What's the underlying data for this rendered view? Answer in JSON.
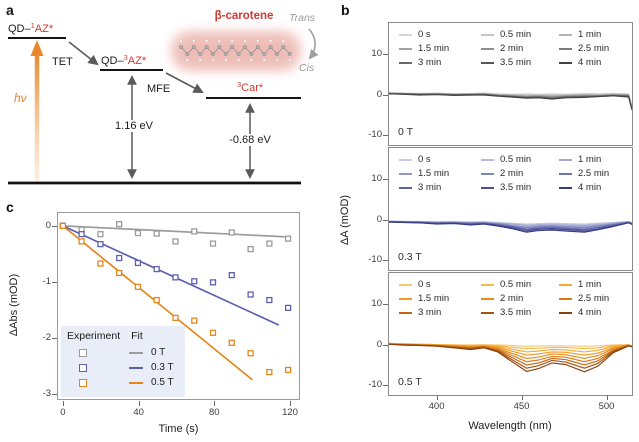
{
  "panels": {
    "a": "a",
    "b": "b",
    "c": "c"
  },
  "panel_a": {
    "state_singlet": {
      "prefix": "QD–",
      "sup": "1",
      "rest": "AZ*"
    },
    "state_triplet": {
      "prefix": "QD–",
      "sup": "3",
      "rest": "AZ*"
    },
    "state_car": {
      "sup": "3",
      "rest": "Car*"
    },
    "labels": {
      "tet": "TET",
      "mfe": "MFE",
      "hv": "hν",
      "e_triplet": "1.16 eV",
      "e_car": "-0.68 eV",
      "carotene": "β-carotene",
      "trans": "Trans",
      "cis": "Cis"
    },
    "colors": {
      "red": "#cf3a32",
      "orange": "#e8882b",
      "arrow_gray": "#5a5a5a"
    }
  },
  "chart_data": [
    {
      "id": "spectra_0T",
      "type": "line",
      "title": "0 T",
      "xlabel": "Wavelength (nm)",
      "ylabel": "ΔA (mOD)",
      "xlim": [
        372,
        515
      ],
      "ylim": [
        -12.4,
        17.6
      ],
      "xticks": [
        400,
        450,
        500
      ],
      "yticks": [
        10,
        0,
        -10
      ],
      "x": [
        372,
        380,
        390,
        400,
        410,
        420,
        428,
        436,
        444,
        453,
        460,
        468,
        476,
        487,
        495,
        504,
        513,
        515
      ],
      "series": [
        {
          "name": "0 s",
          "color": "#d6d6d6",
          "values": [
            0.5,
            0.4,
            0.3,
            0.4,
            0.2,
            0.3,
            0.4,
            0.2,
            0.1,
            0.2,
            0.1,
            0.2,
            0.1,
            0.3,
            0.2,
            0.3,
            0.2,
            -3.0
          ]
        },
        {
          "name": "0.5 min",
          "color": "#c6c6c6",
          "values": [
            0.4,
            0.3,
            0.3,
            0.3,
            0.2,
            0.2,
            0.3,
            0.1,
            0.0,
            -0.1,
            0.0,
            -0.1,
            0.0,
            0.1,
            0.1,
            0.2,
            0.1,
            -3.1
          ]
        },
        {
          "name": "1 min",
          "color": "#b4b4b4",
          "values": [
            0.4,
            0.3,
            0.2,
            0.3,
            0.1,
            0.2,
            0.2,
            0.0,
            -0.1,
            -0.3,
            -0.2,
            -0.3,
            -0.2,
            0.0,
            -0.1,
            0.1,
            0.0,
            -3.2
          ]
        },
        {
          "name": "1.5 min",
          "color": "#a2a2a2",
          "values": [
            0.3,
            0.3,
            0.2,
            0.2,
            0.1,
            0.1,
            0.2,
            -0.1,
            -0.2,
            -0.4,
            -0.3,
            -0.5,
            -0.3,
            -0.2,
            -0.2,
            0.0,
            -0.1,
            -3.3
          ]
        },
        {
          "name": "2 min",
          "color": "#8f8f8f",
          "values": [
            0.3,
            0.2,
            0.1,
            0.2,
            0.0,
            0.1,
            0.1,
            -0.2,
            -0.3,
            -0.5,
            -0.4,
            -0.6,
            -0.4,
            -0.3,
            -0.3,
            -0.1,
            -0.2,
            -3.4
          ]
        },
        {
          "name": "2.5 min",
          "color": "#7c7c7c",
          "values": [
            0.3,
            0.2,
            0.1,
            0.1,
            0.0,
            0.0,
            0.1,
            -0.2,
            -0.4,
            -0.6,
            -0.5,
            -0.8,
            -0.5,
            -0.4,
            -0.3,
            -0.2,
            -0.3,
            -3.5
          ]
        },
        {
          "name": "3 min",
          "color": "#696969",
          "values": [
            0.2,
            0.2,
            0.0,
            0.1,
            -0.1,
            0.0,
            0.0,
            -0.3,
            -0.5,
            -0.7,
            -0.6,
            -0.9,
            -0.6,
            -0.5,
            -0.4,
            -0.2,
            -0.4,
            -3.6
          ]
        },
        {
          "name": "3.5 min",
          "color": "#575757",
          "values": [
            0.2,
            0.1,
            0.0,
            0.0,
            -0.1,
            -0.1,
            0.0,
            -0.3,
            -0.5,
            -0.8,
            -0.7,
            -1.0,
            -0.7,
            -0.6,
            -0.5,
            -0.3,
            -0.5,
            -3.7
          ]
        },
        {
          "name": "4 min",
          "color": "#444444",
          "values": [
            0.2,
            0.1,
            -0.1,
            0.0,
            -0.2,
            -0.1,
            -0.1,
            -0.4,
            -0.6,
            -0.9,
            -0.8,
            -1.1,
            -0.8,
            -0.7,
            -0.5,
            -0.3,
            -0.6,
            -3.8
          ]
        }
      ]
    },
    {
      "id": "spectra_0.3T",
      "type": "line",
      "title": "0.3 T",
      "xlabel": "Wavelength (nm)",
      "ylabel": "ΔA (mOD)",
      "xlim": [
        372,
        515
      ],
      "ylim": [
        -12.4,
        17.6
      ],
      "xticks": [
        400,
        450,
        500
      ],
      "yticks": [
        10,
        0,
        -10
      ],
      "x": [
        372,
        380,
        390,
        400,
        410,
        420,
        428,
        436,
        444,
        453,
        460,
        468,
        476,
        487,
        495,
        504,
        513,
        515
      ],
      "series": [
        {
          "name": "0 s",
          "color": "#cbcde6",
          "values": [
            -0.4,
            -0.4,
            -0.5,
            -0.5,
            -0.5,
            -0.6,
            -0.5,
            -0.7,
            -0.9,
            -1.1,
            -1.0,
            -0.9,
            -1.0,
            -1.1,
            -0.9,
            -0.7,
            -0.5,
            -0.8
          ]
        },
        {
          "name": "0.5 min",
          "color": "#b8bbdc",
          "values": [
            -0.4,
            -0.5,
            -0.5,
            -0.6,
            -0.6,
            -0.7,
            -0.6,
            -0.8,
            -1.0,
            -1.3,
            -1.2,
            -1.1,
            -1.2,
            -1.3,
            -1.1,
            -0.8,
            -0.5,
            -0.8
          ]
        },
        {
          "name": "1 min",
          "color": "#a5a9d2",
          "values": [
            -0.4,
            -0.5,
            -0.5,
            -0.7,
            -0.6,
            -0.7,
            -0.7,
            -0.9,
            -1.1,
            -1.5,
            -1.3,
            -1.3,
            -1.4,
            -1.5,
            -1.3,
            -0.9,
            -0.5,
            -0.9
          ]
        },
        {
          "name": "1.5 min",
          "color": "#9297c8",
          "values": [
            -0.5,
            -0.5,
            -0.6,
            -0.7,
            -0.7,
            -0.8,
            -0.8,
            -1.0,
            -1.4,
            -1.8,
            -1.6,
            -1.5,
            -1.7,
            -1.8,
            -1.5,
            -1.1,
            -0.6,
            -0.9
          ]
        },
        {
          "name": "2 min",
          "color": "#7f85bd",
          "values": [
            -0.5,
            -0.6,
            -0.6,
            -0.8,
            -0.7,
            -0.9,
            -0.8,
            -1.1,
            -1.5,
            -2.0,
            -1.7,
            -1.7,
            -1.8,
            -2.0,
            -1.6,
            -1.2,
            -0.6,
            -1.0
          ]
        },
        {
          "name": "2.5 min",
          "color": "#6c73b2",
          "values": [
            -0.5,
            -0.6,
            -0.7,
            -0.9,
            -0.8,
            -1.0,
            -0.9,
            -1.2,
            -1.7,
            -2.3,
            -2.0,
            -1.9,
            -2.1,
            -2.3,
            -1.9,
            -1.3,
            -0.7,
            -1.0
          ]
        },
        {
          "name": "3 min",
          "color": "#5a61a6",
          "values": [
            -0.5,
            -0.6,
            -0.7,
            -0.9,
            -0.9,
            -1.1,
            -1.0,
            -1.3,
            -1.8,
            -2.5,
            -2.2,
            -2.1,
            -2.3,
            -2.5,
            -2.0,
            -1.4,
            -0.7,
            -1.1
          ]
        },
        {
          "name": "3.5 min",
          "color": "#484e97",
          "values": [
            -0.6,
            -0.7,
            -0.8,
            -1.0,
            -0.9,
            -1.2,
            -1.0,
            -1.4,
            -2.0,
            -2.8,
            -2.4,
            -2.3,
            -2.5,
            -2.8,
            -2.3,
            -1.6,
            -0.8,
            -1.1
          ]
        },
        {
          "name": "4 min",
          "color": "#383c80",
          "values": [
            -0.6,
            -0.7,
            -0.8,
            -1.1,
            -1.0,
            -1.3,
            -1.1,
            -1.6,
            -2.2,
            -3.1,
            -2.7,
            -2.6,
            -2.8,
            -3.1,
            -2.5,
            -1.7,
            -0.8,
            -1.2
          ]
        }
      ]
    },
    {
      "id": "spectra_0.5T",
      "type": "line",
      "title": "0.5 T",
      "xlabel": "Wavelength (nm)",
      "ylabel": "ΔA (mOD)",
      "xlim": [
        372,
        515
      ],
      "ylim": [
        -12.4,
        17.6
      ],
      "xticks": [
        400,
        450,
        500
      ],
      "yticks": [
        10,
        0,
        -10
      ],
      "x": [
        372,
        380,
        390,
        400,
        410,
        420,
        428,
        436,
        444,
        453,
        460,
        468,
        476,
        487,
        495,
        504,
        513,
        515
      ],
      "series": [
        {
          "name": "0 s",
          "color": "#f9c96f",
          "values": [
            0.3,
            0.2,
            0.1,
            0.0,
            -0.05,
            -0.1,
            -0.05,
            -0.1,
            -0.2,
            -0.4,
            -0.35,
            -0.3,
            -0.3,
            -0.4,
            -0.3,
            -0.1,
            0.0,
            -0.3
          ]
        },
        {
          "name": "0.5 min",
          "color": "#f7b94e",
          "values": [
            0.3,
            0.2,
            0.1,
            0.0,
            -0.1,
            -0.2,
            -0.1,
            -0.3,
            -0.6,
            -1.0,
            -0.9,
            -0.7,
            -0.7,
            -1.0,
            -0.8,
            -0.3,
            -0.1,
            -0.3
          ]
        },
        {
          "name": "1 min",
          "color": "#f4a935",
          "values": [
            0.2,
            0.1,
            0.0,
            -0.1,
            -0.2,
            -0.3,
            -0.2,
            -0.5,
            -1.1,
            -1.8,
            -1.6,
            -1.2,
            -1.3,
            -1.8,
            -1.4,
            -0.5,
            -0.1,
            -0.4
          ]
        },
        {
          "name": "1.5 min",
          "color": "#ee9a26",
          "values": [
            0.2,
            0.1,
            0.0,
            -0.1,
            -0.3,
            -0.5,
            -0.3,
            -0.7,
            -1.6,
            -2.6,
            -2.3,
            -1.8,
            -1.9,
            -2.6,
            -2.1,
            -0.8,
            -0.1,
            -0.4
          ]
        },
        {
          "name": "2 min",
          "color": "#e68a1d",
          "values": [
            0.2,
            0.1,
            -0.1,
            -0.2,
            -0.4,
            -0.6,
            -0.4,
            -1.0,
            -2.1,
            -3.4,
            -3.1,
            -2.3,
            -2.5,
            -3.4,
            -2.7,
            -1.0,
            -0.2,
            -0.4
          ]
        },
        {
          "name": "2.5 min",
          "color": "#d87a18",
          "values": [
            0.1,
            0.0,
            -0.1,
            -0.2,
            -0.5,
            -0.8,
            -0.5,
            -1.2,
            -2.6,
            -4.2,
            -3.8,
            -2.9,
            -3.1,
            -4.2,
            -3.4,
            -1.3,
            -0.2,
            -0.5
          ]
        },
        {
          "name": "3 min",
          "color": "#c36715",
          "values": [
            0.1,
            0.0,
            -0.1,
            -0.3,
            -0.6,
            -0.9,
            -0.6,
            -1.4,
            -3.1,
            -5.0,
            -4.5,
            -3.4,
            -3.7,
            -5.0,
            -4.0,
            -1.5,
            -0.2,
            -0.5
          ]
        },
        {
          "name": "3.5 min",
          "color": "#a55412",
          "values": [
            0.1,
            -0.1,
            -0.2,
            -0.3,
            -0.7,
            -1.0,
            -0.7,
            -1.6,
            -3.6,
            -5.8,
            -5.2,
            -3.9,
            -4.3,
            -5.8,
            -4.6,
            -1.7,
            -0.3,
            -0.5
          ]
        },
        {
          "name": "4 min",
          "color": "#84420e",
          "values": [
            0.1,
            -0.1,
            -0.2,
            -0.4,
            -0.8,
            -1.2,
            -0.8,
            -1.8,
            -4.1,
            -6.6,
            -5.9,
            -4.5,
            -4.9,
            -6.7,
            -5.3,
            -2.0,
            -0.3,
            -0.6
          ]
        }
      ]
    },
    {
      "id": "kinetics",
      "type": "scatter",
      "xlabel": "Time (s)",
      "ylabel": "ΔAbs (mOD)",
      "xlim": [
        -2.6,
        125.8
      ],
      "ylim": [
        -3.125,
        0.232
      ],
      "xticks": [
        0,
        40,
        80,
        120
      ],
      "yticks": [
        0,
        -1,
        -2,
        -3
      ],
      "legend": {
        "col1": "Experiment",
        "col2": "Fit"
      },
      "x": [
        0,
        10,
        20,
        30,
        40,
        50,
        60,
        70,
        80,
        90,
        100,
        110,
        120
      ],
      "series": [
        {
          "name": "0 T",
          "color": "#9b9b9b",
          "experiment": [
            0,
            -0.07,
            -0.15,
            0.03,
            -0.13,
            -0.14,
            -0.28,
            -0.1,
            -0.32,
            -0.12,
            -0.42,
            -0.32,
            -0.23
          ],
          "fit": {
            "x": [
              0,
              120
            ],
            "y": [
              0,
              -0.2
            ]
          }
        },
        {
          "name": "0.3 T",
          "color": "#5c5fae",
          "experiment": [
            0,
            -0.15,
            -0.33,
            -0.58,
            -0.67,
            -0.78,
            -0.93,
            -1.0,
            -1.02,
            -0.89,
            -1.24,
            -1.34,
            -1.48
          ],
          "fit": {
            "x": [
              0,
              115
            ],
            "y": [
              0,
              -1.79
            ]
          }
        },
        {
          "name": "0.5 T",
          "color": "#e4861c",
          "experiment": [
            0,
            -0.28,
            -0.68,
            -0.85,
            -1.1,
            -1.34,
            -1.66,
            -1.71,
            -1.93,
            -2.11,
            -2.3,
            -2.64,
            -2.6
          ],
          "fit": {
            "x": [
              0,
              101
            ],
            "y": [
              0,
              -2.78
            ]
          }
        }
      ]
    }
  ]
}
